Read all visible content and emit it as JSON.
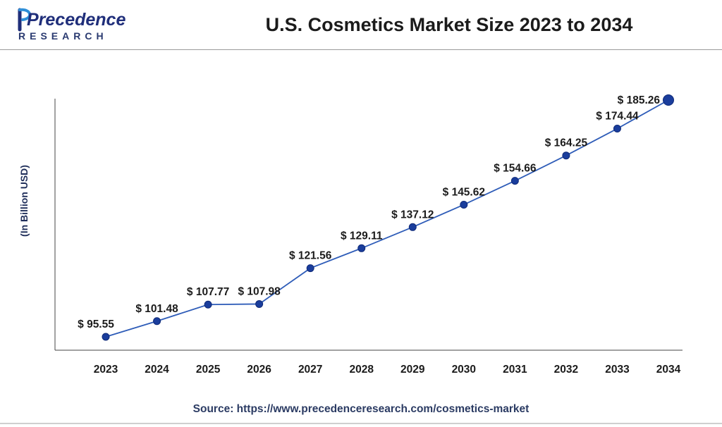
{
  "brand": {
    "name_line1": "Precedence",
    "name_line2": "RESEARCH",
    "primary_color": "#1f2e7a",
    "accent_color": "#2f8fd8"
  },
  "header": {
    "title": "U.S. Cosmetics Market Size 2023 to 2034"
  },
  "footer": {
    "source": "Source: https://www.precedenceresearch.com/cosmetics-market"
  },
  "chart_data": {
    "type": "line",
    "title": "U.S. Cosmetics Market Size 2023 to 2034",
    "xlabel": "",
    "ylabel": "(In Billion USD)",
    "categories": [
      "2023",
      "2024",
      "2025",
      "2026",
      "2027",
      "2028",
      "2029",
      "2030",
      "2031",
      "2032",
      "2033",
      "2034"
    ],
    "series": [
      {
        "values": [
          95.55,
          101.48,
          107.77,
          107.98,
          121.56,
          129.11,
          137.12,
          145.62,
          154.66,
          164.25,
          174.44,
          185.26
        ],
        "labels": [
          "$ 95.55",
          "$ 101.48",
          "$ 107.77",
          "$ 107.98",
          "$ 121.56",
          "$ 129.11",
          "$ 137.12",
          "$ 145.62",
          "$ 154.66",
          "$ 164.25",
          "$ 174.44",
          "$ 185.26"
        ]
      }
    ],
    "ylim": [
      80,
      190
    ],
    "grid": false,
    "legend": "none",
    "line_color": "#2e5cb8",
    "marker_color": "#1a3d9c"
  }
}
